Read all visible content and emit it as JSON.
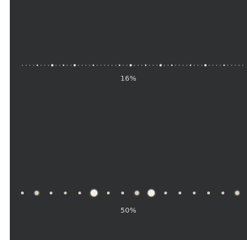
{
  "samples": [
    {
      "zoom_label": "16%",
      "dots": [
        {
          "kind": "tiny"
        },
        {
          "kind": "tiny"
        },
        {
          "kind": "tiny"
        },
        {
          "kind": "tiny"
        },
        {
          "kind": "small"
        },
        {
          "kind": "tiny"
        },
        {
          "kind": "tiny"
        },
        {
          "kind": "tiny"
        },
        {
          "kind": "bright"
        },
        {
          "kind": "tiny"
        },
        {
          "kind": "tiny"
        },
        {
          "kind": "small"
        },
        {
          "kind": "tiny"
        },
        {
          "kind": "tiny"
        },
        {
          "kind": "bright"
        },
        {
          "kind": "tiny"
        },
        {
          "kind": "tiny"
        },
        {
          "kind": "tiny"
        },
        {
          "kind": "tiny"
        },
        {
          "kind": "small"
        },
        {
          "kind": "tiny"
        },
        {
          "kind": "tiny"
        },
        {
          "kind": "tiny"
        },
        {
          "kind": "tiny"
        },
        {
          "kind": "tiny"
        },
        {
          "kind": "tiny"
        },
        {
          "kind": "small"
        },
        {
          "kind": "tiny"
        },
        {
          "kind": "tiny"
        },
        {
          "kind": "bright"
        },
        {
          "kind": "tiny"
        },
        {
          "kind": "tiny"
        },
        {
          "kind": "tiny"
        },
        {
          "kind": "small"
        },
        {
          "kind": "tiny"
        },
        {
          "kind": "tiny"
        },
        {
          "kind": "tiny"
        },
        {
          "kind": "bright"
        },
        {
          "kind": "tiny"
        },
        {
          "kind": "tiny"
        },
        {
          "kind": "small"
        },
        {
          "kind": "tiny"
        },
        {
          "kind": "tiny"
        },
        {
          "kind": "tiny"
        },
        {
          "kind": "tiny"
        },
        {
          "kind": "small"
        },
        {
          "kind": "tiny"
        },
        {
          "kind": "tiny"
        },
        {
          "kind": "tiny"
        },
        {
          "kind": "bright"
        },
        {
          "kind": "tiny"
        },
        {
          "kind": "tiny"
        },
        {
          "kind": "tiny"
        },
        {
          "kind": "tiny"
        },
        {
          "kind": "small"
        },
        {
          "kind": "tiny"
        },
        {
          "kind": "tiny"
        },
        {
          "kind": "tiny"
        },
        {
          "kind": "tiny"
        },
        {
          "kind": "tiny"
        }
      ]
    },
    {
      "zoom_label": "50%",
      "dots": [
        {
          "kind": "small"
        },
        {
          "kind": "medium"
        },
        {
          "kind": "small"
        },
        {
          "kind": "small"
        },
        {
          "kind": "small"
        },
        {
          "kind": "large"
        },
        {
          "kind": "small"
        },
        {
          "kind": "small"
        },
        {
          "kind": "medium"
        },
        {
          "kind": "large"
        },
        {
          "kind": "small"
        },
        {
          "kind": "small"
        },
        {
          "kind": "small"
        },
        {
          "kind": "small"
        },
        {
          "kind": "small"
        },
        {
          "kind": "medium"
        }
      ]
    }
  ],
  "colors": {
    "canvas": "#2f3031",
    "page": "#ffffff",
    "dot_warm": "#d8cfbf",
    "dot_bright": "#f3efe6",
    "label": "#d9d9d9"
  }
}
